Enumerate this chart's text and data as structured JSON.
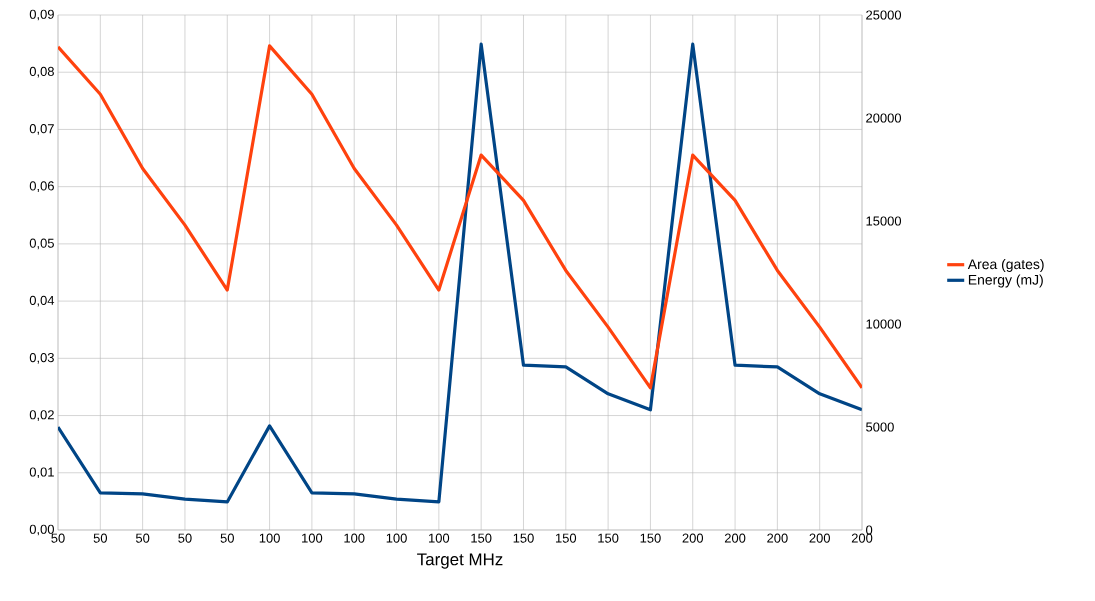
{
  "chart_data": {
    "type": "line",
    "xlabel": "Target MHz",
    "categories": [
      "50",
      "50",
      "50",
      "50",
      "50",
      "100",
      "100",
      "100",
      "100",
      "100",
      "150",
      "150",
      "150",
      "150",
      "150",
      "200",
      "200",
      "200",
      "200",
      "200"
    ],
    "ylim": [
      0,
      0.09
    ],
    "yticks": [
      {
        "value": 0,
        "label": "0,00"
      },
      {
        "value": 0.01,
        "label": "0,01"
      },
      {
        "value": 0.02,
        "label": "0,02"
      },
      {
        "value": 0.03,
        "label": "0,03"
      },
      {
        "value": 0.04,
        "label": "0,04"
      },
      {
        "value": 0.05,
        "label": "0,05"
      },
      {
        "value": 0.06,
        "label": "0,06"
      },
      {
        "value": 0.07,
        "label": "0,07"
      },
      {
        "value": 0.08,
        "label": "0,08"
      },
      {
        "value": 0.09,
        "label": "0,09"
      }
    ],
    "y2lim": [
      0,
      25000
    ],
    "y2ticks": [
      0,
      5000,
      10000,
      15000,
      20000,
      25000
    ],
    "grid": true,
    "legend": "right",
    "marker": "none",
    "series": [
      {
        "name": "Area (gates)",
        "color": "#ff420e",
        "axis": "y2",
        "values": [
          23450,
          21150,
          17550,
          14800,
          11650,
          23500,
          21150,
          17550,
          14800,
          11650,
          18200,
          16000,
          12600,
          9850,
          6900,
          18200,
          16000,
          12600,
          9850,
          6900
        ]
      },
      {
        "name": "Energy (mJ)",
        "color": "#004586",
        "values": [
          0.018,
          0.0065,
          0.0063,
          0.0054,
          0.0049,
          0.0182,
          0.0065,
          0.0063,
          0.0054,
          0.0049,
          0.0849,
          0.0288,
          0.0285,
          0.0238,
          0.021,
          0.0849,
          0.0288,
          0.0285,
          0.0238,
          0.021
        ]
      }
    ]
  }
}
